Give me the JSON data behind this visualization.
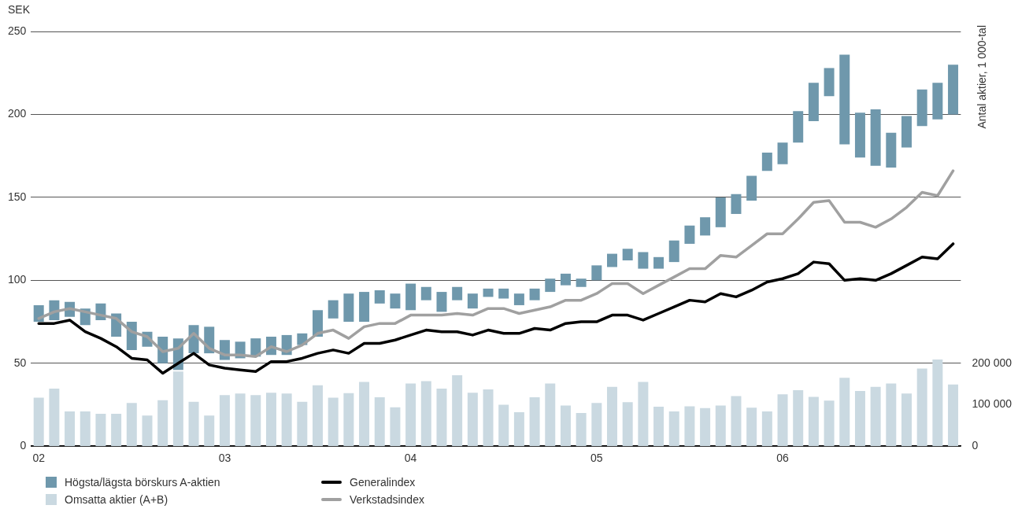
{
  "chart_data": {
    "type": "bar",
    "ylabel": "SEK",
    "y2label": "Antal aktier, 1 000-tal",
    "categories": [
      "02",
      null,
      null,
      null,
      null,
      null,
      null,
      null,
      null,
      null,
      null,
      null,
      "03",
      null,
      null,
      null,
      null,
      null,
      null,
      null,
      null,
      null,
      null,
      null,
      "04",
      null,
      null,
      null,
      null,
      null,
      null,
      null,
      null,
      null,
      null,
      null,
      "05",
      null,
      null,
      null,
      null,
      null,
      null,
      null,
      null,
      null,
      null,
      null,
      "06",
      null,
      null,
      null,
      null,
      null,
      null,
      null,
      null,
      null,
      null,
      null
    ],
    "ylim": [
      0,
      250
    ],
    "yticks": [
      0,
      50,
      100,
      150,
      200,
      250
    ],
    "y2lim": [
      0,
      1000000
    ],
    "y2ticks": [
      0,
      {
        "value": 100000,
        "label": "100 000"
      },
      {
        "value": 200000,
        "label": "200 000"
      }
    ],
    "grid": "y",
    "legend": "bottom left",
    "marker": "none",
    "line_style": "solid",
    "series": [
      {
        "name": "Högsta/lägsta börskurs A-aktien",
        "color": "#6f98ac",
        "base": [
          75,
          76,
          78,
          73,
          76,
          66,
          58,
          60,
          50,
          46,
          56,
          56,
          52,
          53,
          54,
          55,
          55,
          61,
          66,
          77,
          75,
          75,
          86,
          83,
          82,
          88,
          81,
          88,
          83,
          90,
          89,
          85,
          88,
          93,
          97,
          96,
          100,
          108,
          112,
          107,
          107,
          111,
          122,
          127,
          132,
          140,
          148,
          166,
          170,
          183,
          196,
          211,
          182,
          174,
          169,
          168,
          180,
          193,
          197,
          200
        ],
        "values": [
          10,
          12,
          9,
          10,
          10,
          14,
          17,
          9,
          16,
          19,
          17,
          16,
          12,
          10,
          11,
          11,
          12,
          7,
          16,
          11,
          17,
          18,
          8,
          9,
          16,
          8,
          12,
          8,
          9,
          5,
          6,
          7,
          7,
          8,
          7,
          5,
          9,
          8,
          7,
          10,
          7,
          13,
          11,
          11,
          18,
          12,
          15,
          11,
          13,
          19,
          23,
          17,
          54,
          27,
          34,
          21,
          19,
          22,
          22,
          30
        ]
      },
      {
        "name": "Omsatta aktier (A+B)",
        "axis": "y2",
        "color": "#cad9e1",
        "values": [
          117000,
          139000,
          84000,
          84000,
          78000,
          78000,
          104000,
          74000,
          111000,
          180000,
          107000,
          74000,
          123000,
          127000,
          123000,
          129000,
          127000,
          107000,
          147000,
          117000,
          128000,
          155000,
          118000,
          94000,
          151000,
          157000,
          139000,
          171000,
          129000,
          137000,
          100000,
          82000,
          118000,
          151000,
          98000,
          80000,
          104000,
          143000,
          106000,
          155000,
          95000,
          84000,
          96000,
          92000,
          98000,
          121000,
          93000,
          84000,
          125000,
          135000,
          119000,
          110000,
          165000,
          133000,
          143000,
          151000,
          127000,
          187000,
          209000,
          149000
        ]
      },
      {
        "name": "Generalindex",
        "type": "line",
        "color": "#000000",
        "values": [
          74,
          74,
          76,
          69,
          65,
          60,
          53,
          52,
          44,
          50,
          56,
          49,
          47,
          46,
          45,
          51,
          51,
          53,
          56,
          58,
          56,
          62,
          62,
          64,
          67,
          70,
          69,
          69,
          67,
          70,
          68,
          68,
          71,
          70,
          74,
          75,
          75,
          79,
          79,
          76,
          80,
          84,
          88,
          87,
          92,
          90,
          94,
          99,
          101,
          104,
          111,
          110,
          100,
          101,
          100,
          104,
          109,
          114,
          113,
          122
        ]
      },
      {
        "name": "Verkstadsindex",
        "type": "line",
        "color": "#a0a0a0",
        "values": [
          77,
          81,
          83,
          81,
          79,
          77,
          69,
          66,
          57,
          59,
          68,
          59,
          55,
          55,
          54,
          60,
          57,
          61,
          68,
          70,
          65,
          72,
          74,
          74,
          79,
          79,
          79,
          80,
          79,
          83,
          83,
          80,
          82,
          84,
          88,
          88,
          92,
          98,
          98,
          92,
          97,
          102,
          107,
          107,
          115,
          114,
          121,
          128,
          128,
          137,
          147,
          148,
          135,
          135,
          132,
          137,
          144,
          153,
          151,
          166
        ]
      }
    ]
  }
}
